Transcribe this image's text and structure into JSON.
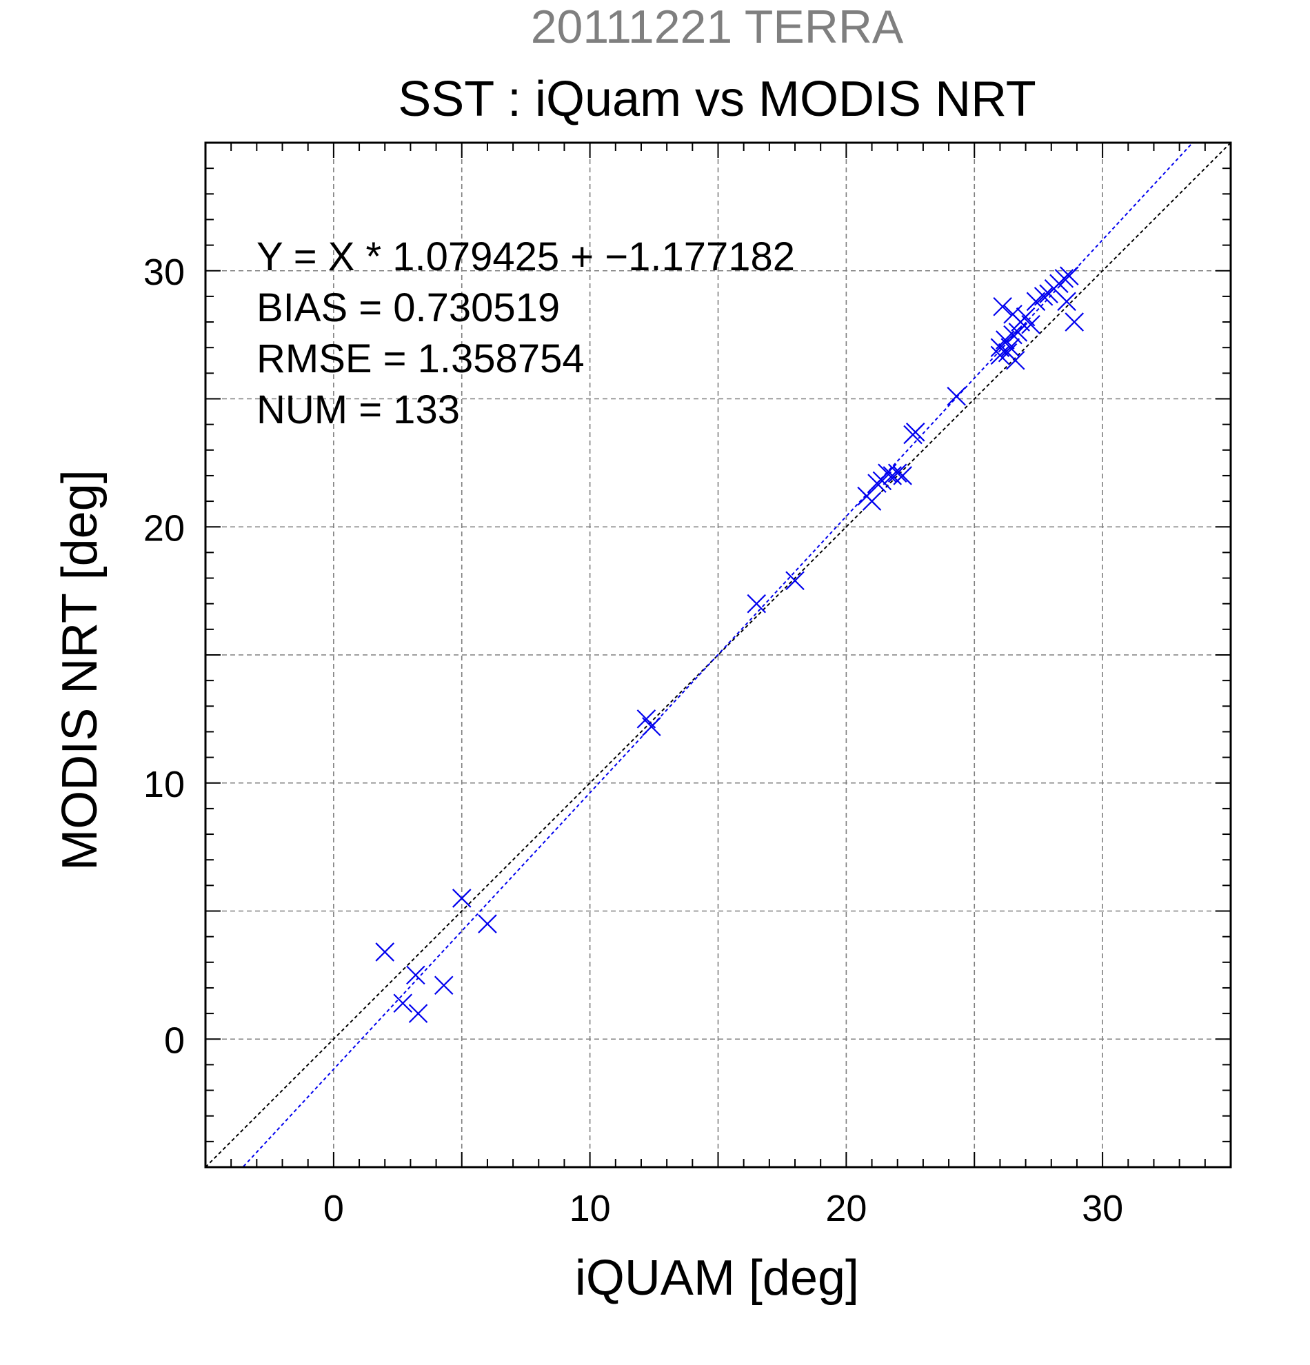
{
  "chart_data": {
    "type": "scatter",
    "supertitle": "20111221 TERRA",
    "title": "SST : iQuam vs MODIS NRT",
    "xlabel": "iQUAM [deg]",
    "ylabel": "MODIS NRT [deg]",
    "xlim": [
      -5,
      35
    ],
    "ylim": [
      -5,
      35
    ],
    "xticks": [
      0,
      10,
      20,
      30
    ],
    "yticks": [
      0,
      10,
      20,
      30
    ],
    "grid": true,
    "stats": [
      "Y = X * 1.079425 + −1.177182",
      "BIAS = 0.730519",
      "RMSE = 1.358754",
      "NUM = 133"
    ],
    "fit": {
      "slope": 1.079425,
      "intercept": -1.177182
    },
    "colors": {
      "points": "#0000ee",
      "fit_line": "#0000ee",
      "identity_line": "#000000",
      "grid": "#7f7f7f",
      "supertitle": "#7f7f7f"
    },
    "series": [
      {
        "marker": "x",
        "points": [
          [
            2.0,
            3.4
          ],
          [
            2.7,
            1.4
          ],
          [
            3.2,
            2.5
          ],
          [
            3.3,
            1.0
          ],
          [
            4.3,
            2.1
          ],
          [
            5.0,
            5.5
          ],
          [
            6.0,
            4.5
          ],
          [
            12.2,
            12.5
          ],
          [
            12.4,
            12.2
          ],
          [
            16.5,
            17.0
          ],
          [
            18.0,
            17.9
          ],
          [
            20.8,
            21.2
          ],
          [
            21.0,
            21.0
          ],
          [
            21.2,
            21.7
          ],
          [
            21.4,
            21.8
          ],
          [
            21.6,
            22.1
          ],
          [
            21.8,
            22.0
          ],
          [
            22.0,
            22.1
          ],
          [
            22.2,
            22.0
          ],
          [
            22.6,
            23.6
          ],
          [
            22.7,
            23.7
          ],
          [
            24.3,
            25.1
          ],
          [
            26.0,
            26.7
          ],
          [
            26.0,
            27.0
          ],
          [
            26.1,
            28.6
          ],
          [
            26.2,
            27.3
          ],
          [
            26.3,
            26.8
          ],
          [
            26.4,
            27.0
          ],
          [
            26.5,
            27.5
          ],
          [
            26.5,
            28.3
          ],
          [
            26.6,
            26.5
          ],
          [
            26.7,
            27.6
          ],
          [
            26.8,
            28.0
          ],
          [
            27.0,
            28.2
          ],
          [
            27.2,
            27.9
          ],
          [
            27.4,
            28.8
          ],
          [
            27.7,
            29.0
          ],
          [
            27.9,
            29.1
          ],
          [
            28.1,
            29.3
          ],
          [
            28.3,
            29.5
          ],
          [
            28.5,
            29.7
          ],
          [
            28.6,
            28.8
          ],
          [
            28.7,
            29.8
          ],
          [
            28.9,
            28.0
          ]
        ]
      }
    ]
  }
}
